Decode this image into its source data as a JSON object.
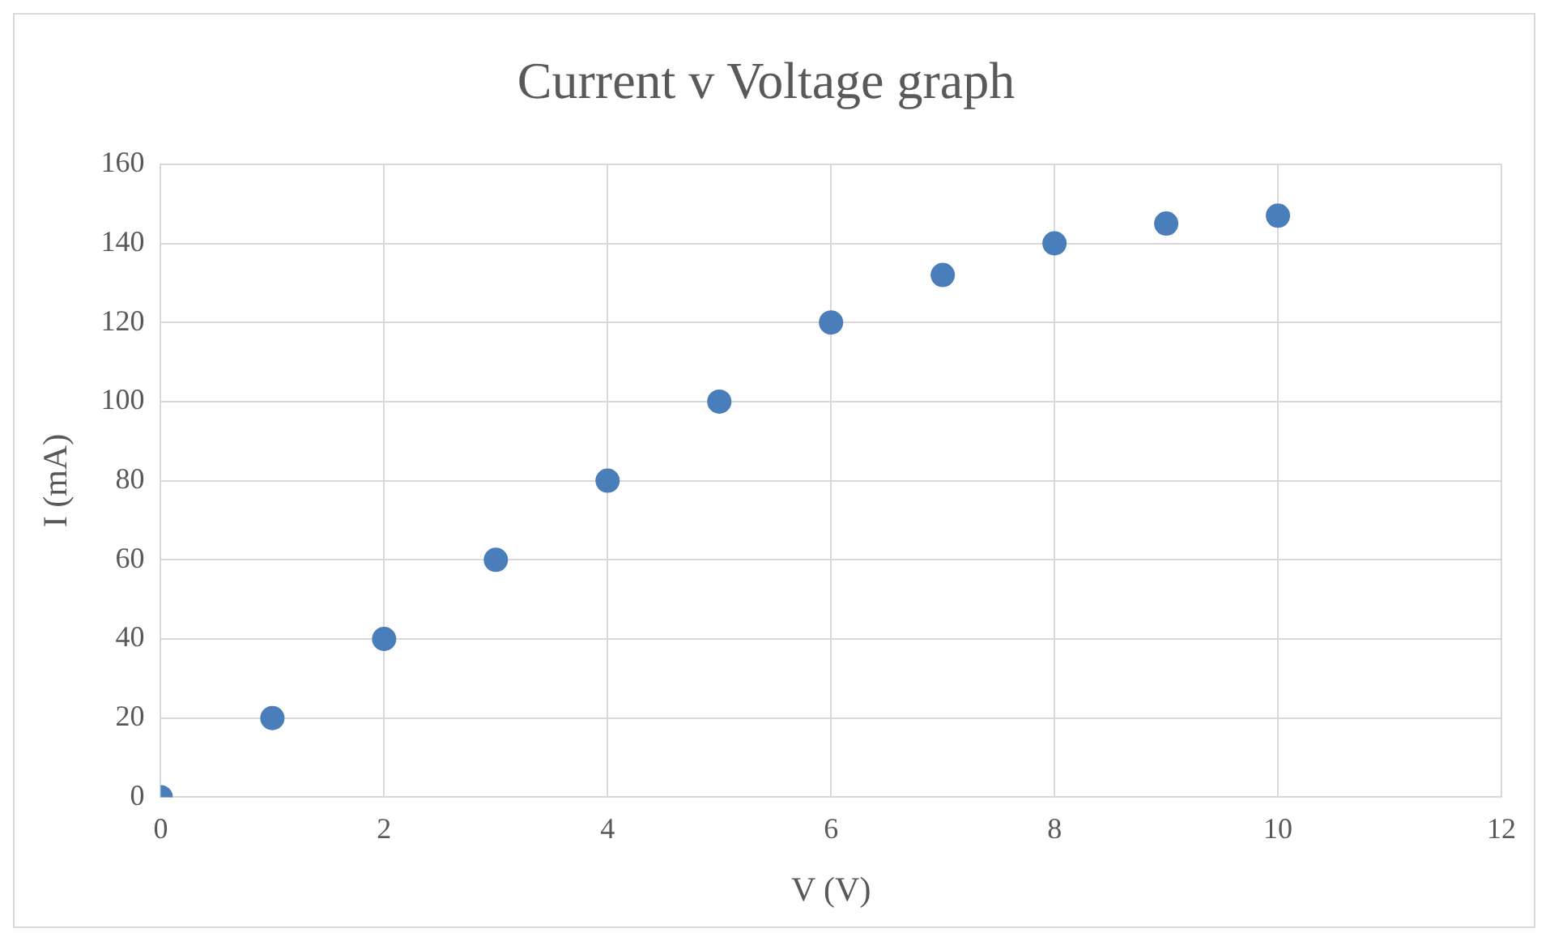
{
  "chart_data": {
    "type": "scatter",
    "title": "Current v Voltage graph",
    "xlabel": "V (V)",
    "ylabel": "I (mA)",
    "x": [
      0,
      1,
      2,
      3,
      4,
      5,
      6,
      7,
      8,
      9,
      10
    ],
    "series": [
      {
        "color": "#4a7ebb",
        "values": [
          0,
          20,
          40,
          60,
          80,
          100,
          120,
          132,
          140,
          145,
          147
        ]
      }
    ],
    "xlim": [
      0,
      12
    ],
    "xticks": [
      0,
      2,
      4,
      6,
      8,
      10,
      12
    ],
    "ylim": [
      0,
      160
    ],
    "yticks": [
      0,
      20,
      40,
      60,
      80,
      100,
      120,
      140,
      160
    ],
    "grid": true,
    "legend": false,
    "marker": "circle"
  }
}
